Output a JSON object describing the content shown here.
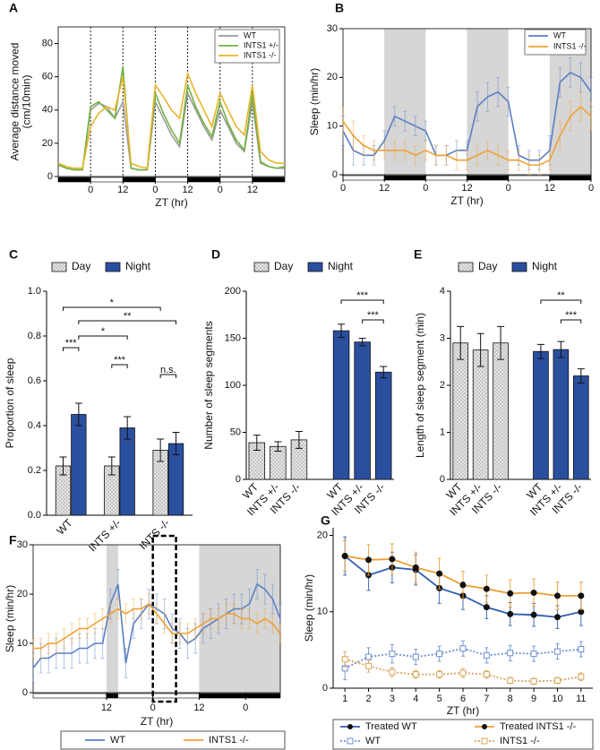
{
  "chart_data": [
    {
      "type": "line",
      "label": "A",
      "ylabel": [
        "Average distance moved",
        "(cm/10min)"
      ],
      "xlabel": "ZT (hr)",
      "x": [
        0,
        3,
        6,
        9,
        12,
        15,
        18,
        21,
        24,
        27,
        30,
        33,
        36,
        39,
        42,
        45,
        48,
        51,
        54,
        57,
        60,
        63,
        66,
        69,
        72,
        75,
        78,
        81,
        84
      ],
      "xlim": [
        0,
        84
      ],
      "xticks": [
        {
          "value": 12,
          "label": "0"
        },
        {
          "value": 24,
          "label": "12"
        },
        {
          "value": 36,
          "label": "0"
        },
        {
          "value": 48,
          "label": "12"
        },
        {
          "value": 60,
          "label": "0"
        },
        {
          "value": 72,
          "label": "12"
        }
      ],
      "ylim": [
        0,
        90
      ],
      "yticks": [
        0,
        20,
        40,
        60,
        80
      ],
      "dark": [
        [
          0,
          12
        ],
        [
          24,
          36
        ],
        [
          48,
          60
        ],
        [
          72,
          84
        ]
      ],
      "shade": false,
      "boundary_lines": true,
      "legend": "upper right",
      "series": [
        {
          "name": "WT",
          "color": "#9a9a9a",
          "values": [
            7,
            5,
            4,
            4,
            40,
            44,
            42,
            35,
            45,
            5,
            4,
            4,
            45,
            35,
            25,
            18,
            50,
            40,
            30,
            22,
            40,
            30,
            20,
            15,
            45,
            8,
            6,
            5,
            5
          ]
        },
        {
          "name": "INTS1 +/-",
          "color": "#72b340",
          "values": [
            7,
            5,
            4,
            4,
            42,
            45,
            40,
            35,
            66,
            5,
            4,
            4,
            50,
            38,
            28,
            20,
            55,
            42,
            32,
            24,
            45,
            32,
            22,
            16,
            50,
            9,
            6,
            5,
            6
          ]
        },
        {
          "name": "INTS1 -/-",
          "color": "#e9b42a",
          "values": [
            8,
            6,
            5,
            5,
            30,
            38,
            42,
            40,
            60,
            8,
            6,
            5,
            55,
            48,
            40,
            35,
            62,
            50,
            40,
            30,
            50,
            40,
            30,
            25,
            55,
            15,
            10,
            8,
            8
          ]
        }
      ]
    },
    {
      "type": "line",
      "label": "B",
      "ylabel": [
        "Sleep (min/hr)"
      ],
      "xlabel": "ZT (hr)",
      "x": [
        0,
        3,
        6,
        9,
        12,
        15,
        18,
        21,
        24,
        27,
        30,
        33,
        36,
        39,
        42,
        45,
        48,
        51,
        54,
        57,
        60,
        63,
        66,
        69,
        72
      ],
      "xlim": [
        0,
        72
      ],
      "xticks": [
        0,
        12,
        {
          "value": 24,
          "label": "0"
        },
        {
          "value": 36,
          "label": "12"
        },
        {
          "value": 48,
          "label": "0"
        },
        {
          "value": 60,
          "label": "12"
        },
        {
          "value": 72,
          "label": "0"
        }
      ],
      "ylim": [
        0,
        30
      ],
      "yticks": [
        0,
        10,
        20,
        30
      ],
      "dark": [
        [
          12,
          24
        ],
        [
          36,
          48
        ],
        [
          60,
          72
        ]
      ],
      "shade": true,
      "boundary_lines": false,
      "legend": "upper right",
      "series": [
        {
          "name": "WT",
          "color": "#5b7fc4",
          "values": [
            9,
            5,
            4,
            4,
            7,
            12,
            11,
            10,
            9,
            4,
            4,
            5,
            5,
            14,
            16,
            17,
            15,
            4,
            3,
            3,
            5,
            19,
            21,
            20,
            17
          ],
          "errors": [
            3,
            3,
            2,
            2,
            2,
            2,
            2,
            2,
            2,
            2,
            2,
            2,
            2,
            3,
            3,
            3,
            3,
            2,
            2,
            2,
            3,
            3,
            3,
            3,
            3
          ]
        },
        {
          "name": "INTS1 -/-",
          "color": "#f0a030",
          "values": [
            11,
            8,
            6,
            5,
            5,
            5,
            5,
            4,
            5,
            4,
            4,
            3,
            3,
            4,
            5,
            4,
            3,
            3,
            2,
            2,
            3,
            8,
            12,
            14,
            12
          ],
          "errors": [
            3,
            3,
            2,
            2,
            2,
            2,
            2,
            2,
            2,
            2,
            2,
            2,
            2,
            2,
            2,
            2,
            2,
            2,
            2,
            2,
            2,
            3,
            3,
            3,
            3
          ]
        }
      ]
    },
    {
      "type": "bar",
      "label": "C",
      "ylabel": [
        "Proportion of sleep"
      ],
      "arrangement": "by_category",
      "categories": [
        "WT",
        "INTS +/-",
        "INTS -/-"
      ],
      "ylim": [
        0,
        1
      ],
      "yticks": [
        {
          "value": 0,
          "label": "0.0"
        },
        0.2,
        0.4,
        0.6,
        0.8,
        {
          "value": 1,
          "label": "1.0"
        }
      ],
      "legend": "top",
      "series": [
        {
          "name": "Day",
          "color": "#e4e4e4",
          "hatch": true,
          "values": [
            0.22,
            0.22,
            0.29
          ],
          "errors": [
            0.04,
            0.04,
            0.05
          ]
        },
        {
          "name": "Night",
          "color": "#2b4f9f",
          "hatch": false,
          "values": [
            0.45,
            0.39,
            0.32
          ],
          "errors": [
            0.05,
            0.05,
            0.05
          ]
        }
      ],
      "annotations": [
        "*",
        "**",
        "***",
        "*",
        "***",
        "n.s."
      ]
    },
    {
      "type": "bar",
      "label": "D",
      "ylabel": [
        "Number of sleep segments"
      ],
      "arrangement": "by_series",
      "categories": [
        "WT",
        "INTS +/-",
        "INTS -/-"
      ],
      "ylim": [
        0,
        200
      ],
      "yticks": [
        0,
        50,
        100,
        150,
        200
      ],
      "legend": "top",
      "series": [
        {
          "name": "Day",
          "color": "#e4e4e4",
          "hatch": true,
          "values": [
            39,
            35,
            42
          ],
          "errors": [
            8,
            5,
            9
          ]
        },
        {
          "name": "Night",
          "color": "#2b4f9f",
          "hatch": false,
          "values": [
            158,
            146,
            114
          ],
          "errors": [
            7,
            4,
            6
          ]
        }
      ],
      "annotations": [
        "***",
        "***"
      ]
    },
    {
      "type": "bar",
      "label": "E",
      "ylabel": [
        "Length of sleep segment (min)"
      ],
      "arrangement": "by_series",
      "categories": [
        "WT",
        "INTS +/-",
        "INTS -/-"
      ],
      "ylim": [
        0,
        4
      ],
      "yticks": [
        0,
        1,
        2,
        3,
        4
      ],
      "legend": "top",
      "series": [
        {
          "name": "Day",
          "color": "#e4e4e4",
          "hatch": true,
          "values": [
            2.9,
            2.75,
            2.9
          ],
          "errors": [
            0.35,
            0.35,
            0.35
          ]
        },
        {
          "name": "Night",
          "color": "#2b4f9f",
          "hatch": false,
          "values": [
            2.72,
            2.76,
            2.2
          ],
          "errors": [
            0.15,
            0.17,
            0.15
          ]
        }
      ],
      "annotations": [
        "**",
        "***"
      ]
    },
    {
      "type": "line",
      "label": "F",
      "ylabel": [
        "Sleep (min/hr)"
      ],
      "xlabel": "ZT (hr)",
      "x": [
        0,
        2,
        4,
        6,
        8,
        10,
        12,
        14,
        16,
        18,
        20,
        22,
        24,
        26,
        28,
        30,
        32,
        34,
        36,
        38,
        40,
        42,
        44,
        46,
        48,
        50,
        52,
        54,
        56,
        58,
        60,
        62,
        64
      ],
      "xlim": [
        0,
        64
      ],
      "xticks": [
        {
          "value": 19,
          "label": "12"
        },
        {
          "value": 31,
          "label": "0"
        },
        {
          "value": 43,
          "label": "12"
        },
        {
          "value": 55,
          "label": "0"
        }
      ],
      "ylim": [
        0,
        30
      ],
      "yticks": [
        0,
        10,
        20,
        30
      ],
      "dark": [
        [
          19,
          22
        ],
        [
          43,
          64
        ]
      ],
      "shade": true,
      "boundary_lines": false,
      "highlight": [
        31,
        37
      ],
      "legend": "bottom",
      "series": [
        {
          "name": "WT",
          "color": "#5b7fc4",
          "values": [
            5,
            7,
            7,
            8,
            8,
            8,
            9,
            9,
            10,
            10,
            18,
            22,
            6,
            14,
            16,
            18,
            17,
            16,
            13,
            12,
            10,
            11,
            13,
            14,
            15,
            16,
            17,
            17,
            18,
            22,
            21,
            19,
            15
          ],
          "errors": [
            3,
            3,
            3,
            3,
            3,
            3,
            3,
            3,
            3,
            3,
            3,
            3,
            3,
            3,
            3,
            3,
            3,
            3,
            3,
            3,
            3,
            3,
            3,
            3,
            3,
            3,
            3,
            3,
            3,
            3,
            3,
            3,
            3
          ]
        },
        {
          "name": "INTS1 -/-",
          "color": "#f0a030",
          "values": [
            9,
            9,
            10,
            10,
            11,
            12,
            13,
            13,
            14,
            15,
            16,
            17,
            16,
            17,
            17,
            18,
            16,
            14,
            12,
            12,
            12,
            13,
            14,
            15,
            15,
            16,
            16,
            15,
            15,
            14,
            15,
            14,
            12
          ],
          "errors": [
            2,
            2,
            2,
            2,
            2,
            2,
            2,
            2,
            2,
            2,
            2,
            2,
            2,
            2,
            2,
            2,
            2,
            2,
            2,
            2,
            2,
            2,
            2,
            2,
            2,
            2,
            2,
            2,
            2,
            2,
            2,
            2,
            2
          ]
        }
      ]
    },
    {
      "type": "line",
      "label": "G",
      "ylabel": [
        "Sleep (min/hr)"
      ],
      "xlabel": "ZT (hr)",
      "x": [
        1,
        2,
        3,
        4,
        5,
        6,
        7,
        8,
        9,
        10,
        11
      ],
      "xlim": [
        0.5,
        11.5
      ],
      "xticks": [
        1,
        2,
        3,
        4,
        5,
        6,
        7,
        8,
        9,
        10,
        11
      ],
      "ylim": [
        0,
        21
      ],
      "yticks": [
        0,
        10,
        20
      ],
      "legend": "bottom",
      "series": [
        {
          "name": "Treated WT",
          "color": "#2f5fae",
          "linestyle": "solid",
          "marker": "circle",
          "marker_color": "#111111",
          "values": [
            17.3,
            14.8,
            15.8,
            15.5,
            13.1,
            12.1,
            10.6,
            9.7,
            9.6,
            9.3,
            10.0
          ],
          "errors": [
            2.5,
            2,
            2,
            2,
            2,
            1.8,
            1.5,
            1.5,
            1.5,
            1.5,
            1.8
          ]
        },
        {
          "name": "Treated INTS1 -/-",
          "color": "#eca034",
          "linestyle": "solid",
          "marker": "circle",
          "marker_color": "#111111",
          "values": [
            17.3,
            16.8,
            16.9,
            15.8,
            15.0,
            13.5,
            13.0,
            12.4,
            12.5,
            12.1,
            12.1
          ],
          "errors": [
            2,
            2,
            2,
            2,
            2,
            1.8,
            1.8,
            1.8,
            1.8,
            1.8,
            1.8
          ]
        },
        {
          "name": "WT",
          "color": "#6d8fcf",
          "linestyle": "dotted",
          "marker": "square",
          "marker_color": "none",
          "values": [
            2.6,
            4.1,
            4.5,
            4.1,
            4.5,
            5.2,
            4.3,
            4.6,
            4.5,
            4.8,
            5.1
          ],
          "errors": [
            1.5,
            1.2,
            1.2,
            1,
            1,
            1,
            1,
            1,
            1,
            1,
            1
          ]
        },
        {
          "name": "INTS1 -/-",
          "color": "#d9a55a",
          "linestyle": "dotted",
          "marker": "square",
          "marker_color": "none",
          "values": [
            3.8,
            2.9,
            2.1,
            1.8,
            1.8,
            2.0,
            1.8,
            1.0,
            0.9,
            1.0,
            1.5
          ],
          "errors": [
            1,
            0.8,
            0.6,
            0.5,
            0.5,
            0.6,
            0.5,
            0.4,
            0.4,
            0.4,
            0.5
          ]
        }
      ]
    }
  ]
}
